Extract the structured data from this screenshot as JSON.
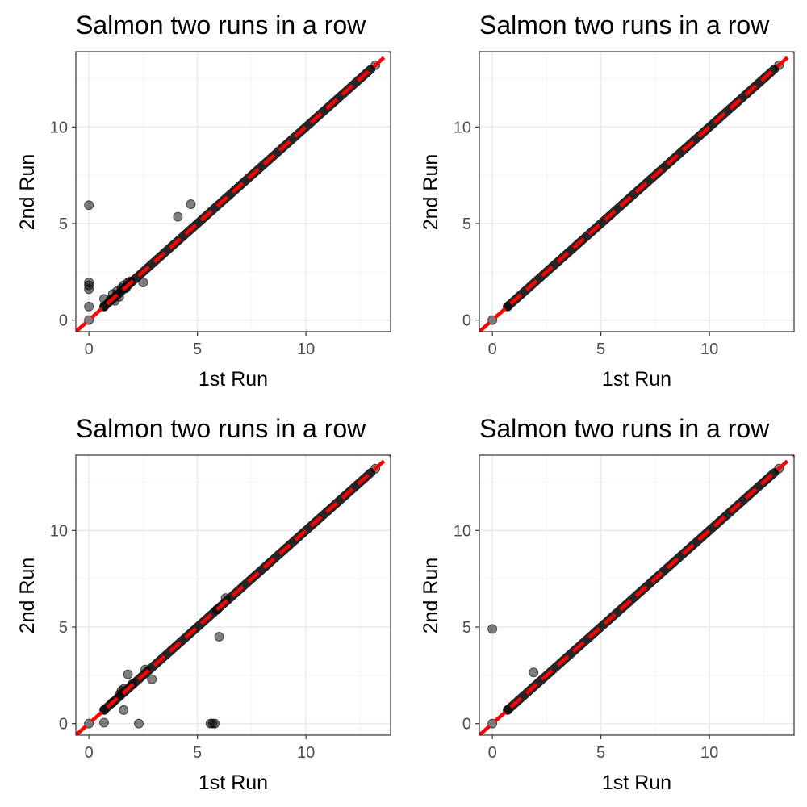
{
  "colors": {
    "point": "#000000",
    "ref_line": "#ff0000",
    "grid_major": "#ebebeb",
    "grid_minor": "#f5f5f5",
    "panel_border": "#333333",
    "tick_text": "#4d4d4d"
  },
  "chart_data": [
    {
      "type": "scatter",
      "title": "Salmon two runs in a row",
      "xlabel": "1st Run",
      "ylabel": "2nd Run",
      "xlim": [
        -0.6,
        13.9
      ],
      "ylim": [
        -0.6,
        13.9
      ],
      "xticks": [
        "0",
        "5",
        "10"
      ],
      "yticks": [
        "0",
        "5",
        "10"
      ],
      "grid": true,
      "reference_line": {
        "slope": 1,
        "intercept": 0,
        "style": "dashed"
      },
      "points": [
        [
          0,
          0
        ],
        [
          0,
          5.95
        ],
        [
          0,
          1.95
        ],
        [
          0,
          1.8
        ],
        [
          0,
          1.6
        ],
        [
          0,
          0.7
        ],
        [
          0.7,
          0.7
        ],
        [
          0.7,
          1.1
        ],
        [
          1.0,
          1.05
        ],
        [
          1.1,
          1.35
        ],
        [
          1.2,
          1.0
        ],
        [
          1.3,
          1.5
        ],
        [
          1.4,
          1.2
        ],
        [
          1.5,
          1.65
        ],
        [
          1.6,
          1.8
        ],
        [
          1.7,
          1.65
        ],
        [
          1.8,
          1.95
        ],
        [
          1.9,
          2.0
        ],
        [
          2.5,
          1.95
        ],
        [
          4.1,
          5.35
        ],
        [
          4.7,
          6.0
        ],
        [
          13.2,
          13.2
        ]
      ],
      "diagonal_band": [
        0.7,
        13.0
      ]
    },
    {
      "type": "scatter",
      "title": "Salmon two runs in a row",
      "xlabel": "1st Run",
      "ylabel": "2nd Run",
      "xlim": [
        -0.6,
        13.9
      ],
      "ylim": [
        -0.6,
        13.9
      ],
      "xticks": [
        "0",
        "5",
        "10"
      ],
      "yticks": [
        "0",
        "5",
        "10"
      ],
      "grid": true,
      "reference_line": {
        "slope": 1,
        "intercept": 0,
        "style": "dashed"
      },
      "points": [
        [
          0,
          0
        ],
        [
          0.7,
          0.7
        ],
        [
          13.2,
          13.2
        ]
      ],
      "diagonal_band": [
        0.7,
        13.0
      ]
    },
    {
      "type": "scatter",
      "title": "Salmon two runs in a row",
      "xlabel": "1st Run",
      "ylabel": "2nd Run",
      "xlim": [
        -0.6,
        13.9
      ],
      "ylim": [
        -0.6,
        13.9
      ],
      "xticks": [
        "0",
        "5",
        "10"
      ],
      "yticks": [
        "0",
        "5",
        "10"
      ],
      "grid": true,
      "reference_line": {
        "slope": 1,
        "intercept": 0,
        "style": "dashed"
      },
      "points": [
        [
          0,
          0
        ],
        [
          0.7,
          0.7
        ],
        [
          0.7,
          0.05
        ],
        [
          1.1,
          1.1
        ],
        [
          1.4,
          1.5
        ],
        [
          1.5,
          1.7
        ],
        [
          1.6,
          1.8
        ],
        [
          1.6,
          0.7
        ],
        [
          1.8,
          2.55
        ],
        [
          2.0,
          2.05
        ],
        [
          2.3,
          0.0
        ],
        [
          2.6,
          2.8
        ],
        [
          2.9,
          2.3
        ],
        [
          5.6,
          0.0
        ],
        [
          5.7,
          0.0
        ],
        [
          5.8,
          0.0
        ],
        [
          6.0,
          4.5
        ],
        [
          5.9,
          5.9
        ],
        [
          6.3,
          6.5
        ],
        [
          13.2,
          13.2
        ]
      ],
      "diagonal_band": [
        0.7,
        13.0
      ]
    },
    {
      "type": "scatter",
      "title": "Salmon two runs in a row",
      "xlabel": "1st Run",
      "ylabel": "2nd Run",
      "xlim": [
        -0.6,
        13.9
      ],
      "ylim": [
        -0.6,
        13.9
      ],
      "xticks": [
        "0",
        "5",
        "10"
      ],
      "yticks": [
        "0",
        "5",
        "10"
      ],
      "grid": true,
      "reference_line": {
        "slope": 1,
        "intercept": 0,
        "style": "dashed"
      },
      "points": [
        [
          0,
          0
        ],
        [
          0,
          4.9
        ],
        [
          0.7,
          0.7
        ],
        [
          1.9,
          2.65
        ],
        [
          13.2,
          13.2
        ]
      ],
      "diagonal_band": [
        0.7,
        13.0
      ]
    }
  ]
}
